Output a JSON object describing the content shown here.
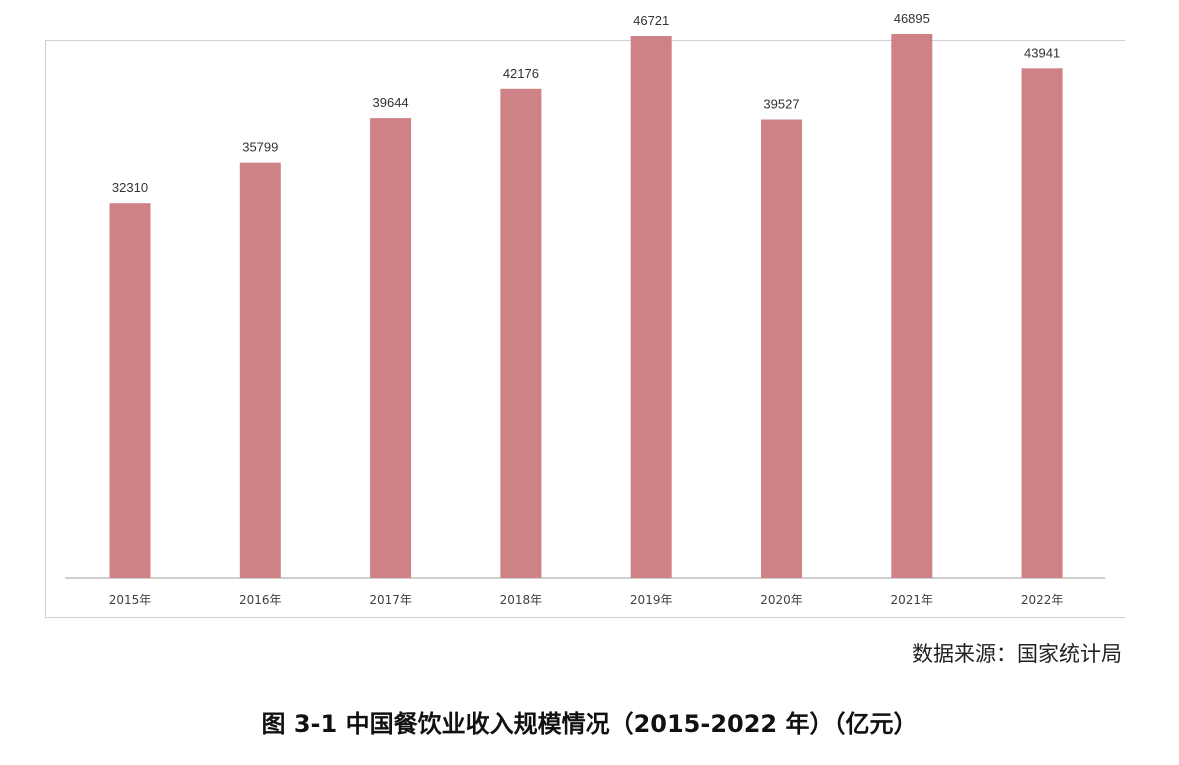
{
  "chart_data": {
    "type": "bar",
    "categories": [
      "2015年",
      "2016年",
      "2017年",
      "2018年",
      "2019年",
      "2020年",
      "2021年",
      "2022年"
    ],
    "values": [
      32310,
      35799,
      39644,
      42176,
      46721,
      39527,
      46895,
      43941
    ],
    "ylim": [
      0,
      50000
    ],
    "grid": false,
    "legend": "none",
    "bar_color": "#cf8285",
    "data_labels": true
  },
  "source": "数据来源：国家统计局",
  "caption": "图 3-1 中国餐饮业收入规模情况（2015-2022 年）（亿元）"
}
